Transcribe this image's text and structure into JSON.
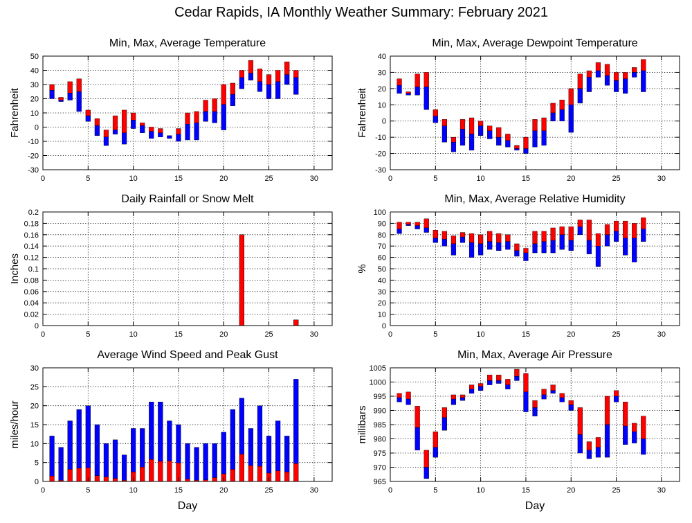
{
  "page": {
    "title": "Cedar Rapids, IA Monthly Weather Summary: February 2021"
  },
  "colors": {
    "upper": "#ff0000",
    "lower": "#0000ff",
    "frame": "#000000",
    "grid": "#000000"
  },
  "chart_data": [
    {
      "id": "temperature",
      "type": "bar",
      "title": "Min, Max, Average Temperature",
      "xlabel": "",
      "ylabel": "Fahrenheit",
      "xlim": [
        0,
        32
      ],
      "xticks": [
        0,
        5,
        10,
        15,
        20,
        25,
        30
      ],
      "ylim": [
        -30,
        50
      ],
      "yticks": [
        -30,
        -20,
        -10,
        0,
        10,
        20,
        30,
        40,
        50
      ],
      "grid": true,
      "mode": "range",
      "days": [
        1,
        2,
        3,
        4,
        5,
        6,
        7,
        8,
        9,
        10,
        11,
        12,
        13,
        14,
        15,
        16,
        17,
        18,
        19,
        20,
        21,
        22,
        23,
        24,
        25,
        26,
        27,
        28
      ],
      "min": [
        20,
        18,
        19,
        11,
        4,
        -6,
        -13,
        -5,
        -12,
        -1,
        -4,
        -8,
        -7,
        -8,
        -10,
        -9,
        -9,
        4,
        3,
        -2,
        15,
        27,
        33,
        25,
        20,
        20,
        30,
        23
      ],
      "avg": [
        26,
        19,
        24,
        25,
        8,
        1,
        -7,
        -2,
        -4,
        5,
        1,
        -3,
        -4,
        -6,
        -5,
        2,
        3,
        11,
        11,
        16,
        23,
        35,
        38,
        32,
        30,
        32,
        37,
        35
      ],
      "max": [
        30,
        21,
        32,
        34,
        12,
        6,
        -2,
        8,
        12,
        10,
        3,
        0,
        -1,
        -6,
        -1,
        10,
        11,
        19,
        20,
        30,
        31,
        40,
        47,
        41,
        37,
        40,
        46,
        40
      ]
    },
    {
      "id": "dewpoint",
      "type": "bar",
      "title": "Min, Max, Average Dewpoint Temperature",
      "xlabel": "",
      "ylabel": "Fahrenheit",
      "xlim": [
        0,
        32
      ],
      "xticks": [
        0,
        5,
        10,
        15,
        20,
        25,
        30
      ],
      "ylim": [
        -30,
        40
      ],
      "yticks": [
        -30,
        -20,
        -10,
        0,
        10,
        20,
        30,
        40
      ],
      "grid": true,
      "mode": "range",
      "days": [
        1,
        2,
        3,
        4,
        5,
        6,
        7,
        8,
        9,
        10,
        11,
        12,
        13,
        14,
        15,
        16,
        17,
        18,
        19,
        20,
        21,
        22,
        23,
        24,
        25,
        26,
        27,
        28
      ],
      "min": [
        17,
        16,
        16,
        7,
        -1,
        -13,
        -19,
        -15,
        -18,
        -9,
        -11,
        -15,
        -16,
        -18,
        -20,
        -16,
        -15,
        0,
        0,
        -7,
        11,
        18,
        27,
        22,
        18,
        17,
        27,
        18
      ],
      "avg": [
        22,
        17,
        21,
        21,
        3,
        -3,
        -13,
        -5,
        -8,
        -3,
        -6,
        -10,
        -12,
        -17,
        -17,
        -6,
        -6,
        5,
        7,
        10,
        20,
        27,
        31,
        28,
        25,
        26,
        30,
        31
      ],
      "max": [
        26,
        18,
        29,
        30,
        7,
        1,
        -10,
        1,
        2,
        0,
        -3,
        -4,
        -8,
        -15,
        -10,
        1,
        2,
        11,
        13,
        20,
        29,
        31,
        36,
        35,
        30,
        30,
        33,
        38
      ]
    },
    {
      "id": "rainfall",
      "type": "bar",
      "title": "Daily Rainfall or Snow Melt",
      "xlabel": "",
      "ylabel": "Inches",
      "xlim": [
        0,
        32
      ],
      "xticks": [
        0,
        5,
        10,
        15,
        20,
        25,
        30
      ],
      "ylim": [
        0,
        0.2
      ],
      "yticks": [
        0,
        0.02,
        0.04,
        0.06,
        0.08,
        0.1,
        0.12,
        0.14,
        0.16,
        0.18,
        0.2
      ],
      "grid": true,
      "mode": "single",
      "days": [
        1,
        2,
        3,
        4,
        5,
        6,
        7,
        8,
        9,
        10,
        11,
        12,
        13,
        14,
        15,
        16,
        17,
        18,
        19,
        20,
        21,
        22,
        23,
        24,
        25,
        26,
        27,
        28
      ],
      "value": [
        0,
        0,
        0,
        0,
        0,
        0,
        0,
        0,
        0,
        0,
        0,
        0,
        0,
        0,
        0,
        0,
        0,
        0,
        0,
        0,
        0,
        0.16,
        0,
        0,
        0,
        0,
        0,
        0.01
      ]
    },
    {
      "id": "humidity",
      "type": "bar",
      "title": "Min, Max, Average Relative Humidity",
      "xlabel": "",
      "ylabel": "%",
      "xlim": [
        0,
        32
      ],
      "xticks": [
        0,
        5,
        10,
        15,
        20,
        25,
        30
      ],
      "ylim": [
        0,
        100
      ],
      "yticks": [
        0,
        10,
        20,
        30,
        40,
        50,
        60,
        70,
        80,
        90,
        100
      ],
      "grid": true,
      "mode": "range",
      "days": [
        1,
        2,
        3,
        4,
        5,
        6,
        7,
        8,
        9,
        10,
        11,
        12,
        13,
        14,
        15,
        16,
        17,
        18,
        19,
        20,
        21,
        22,
        23,
        24,
        25,
        26,
        27,
        28
      ],
      "min": [
        81,
        88,
        85,
        82,
        73,
        70,
        62,
        73,
        60,
        62,
        67,
        66,
        67,
        61,
        57,
        64,
        64,
        64,
        67,
        66,
        80,
        63,
        52,
        70,
        74,
        62,
        56,
        74
      ],
      "avg": [
        85,
        89,
        88,
        86,
        77,
        76,
        72,
        78,
        73,
        72,
        74,
        73,
        74,
        66,
        64,
        72,
        74,
        75,
        80,
        75,
        87,
        75,
        70,
        80,
        83,
        77,
        77,
        85
      ],
      "max": [
        91,
        91,
        91,
        94,
        84,
        83,
        79,
        82,
        81,
        80,
        83,
        81,
        80,
        72,
        68,
        83,
        83,
        86,
        87,
        87,
        93,
        93,
        81,
        89,
        92,
        92,
        90,
        95
      ]
    },
    {
      "id": "wind",
      "type": "bar",
      "title": "Average Wind Speed and Peak Gust",
      "xlabel": "Day",
      "ylabel": "miles/hour",
      "xlim": [
        0,
        32
      ],
      "xticks": [
        0,
        5,
        10,
        15,
        20,
        25,
        30
      ],
      "ylim": [
        0,
        30
      ],
      "yticks": [
        0,
        5,
        10,
        15,
        20,
        25,
        30
      ],
      "grid": true,
      "mode": "stack",
      "days": [
        1,
        2,
        3,
        4,
        5,
        6,
        7,
        8,
        9,
        10,
        11,
        12,
        13,
        14,
        15,
        16,
        17,
        18,
        19,
        20,
        21,
        22,
        23,
        24,
        25,
        26,
        27,
        28
      ],
      "avg": [
        1.4,
        0.3,
        3.2,
        3.5,
        3.6,
        1.5,
        1.2,
        0.8,
        0.3,
        2.5,
        3.8,
        5.8,
        5.3,
        5.4,
        4.9,
        0.6,
        0.3,
        0.4,
        1.0,
        2.0,
        3.2,
        7.2,
        4.2,
        4.0,
        2.2,
        2.8,
        2.5,
        4.7
      ],
      "gust": [
        12,
        9,
        16,
        19,
        20,
        15,
        10,
        11,
        7,
        14,
        14,
        21,
        21,
        16,
        15,
        10,
        9,
        10,
        10,
        13,
        19,
        22,
        14,
        20,
        12,
        16,
        12,
        27
      ]
    },
    {
      "id": "pressure",
      "type": "bar",
      "title": "Min, Max, Average Air Pressure",
      "xlabel": "Day",
      "ylabel": "millibars",
      "xlim": [
        0,
        32
      ],
      "xticks": [
        0,
        5,
        10,
        15,
        20,
        25,
        30
      ],
      "ylim": [
        965,
        1005
      ],
      "yticks": [
        965,
        970,
        975,
        980,
        985,
        990,
        995,
        1000,
        1005
      ],
      "grid": true,
      "mode": "range",
      "days": [
        1,
        2,
        3,
        4,
        5,
        6,
        7,
        8,
        9,
        10,
        11,
        12,
        13,
        14,
        15,
        16,
        17,
        18,
        19,
        20,
        21,
        22,
        23,
        24,
        25,
        26,
        27,
        28
      ],
      "min": [
        993,
        992,
        976,
        966,
        973.5,
        983,
        992,
        993.5,
        996,
        997,
        999,
        999.5,
        997.5,
        1000.5,
        989.5,
        988,
        994,
        996,
        993,
        990,
        975,
        973,
        973.5,
        973.5,
        993,
        978,
        978.5,
        974.5
      ],
      "avg": [
        994.5,
        994,
        984,
        970,
        977,
        987.5,
        994,
        994.5,
        997.5,
        998.5,
        1000.5,
        1000.5,
        999,
        1002,
        996.5,
        991,
        995.5,
        997,
        994.5,
        992,
        981.5,
        976,
        977,
        985,
        995,
        984.5,
        982.5,
        980
      ],
      "max": [
        996,
        996.5,
        991.5,
        976,
        982.5,
        991,
        995.5,
        995.5,
        999,
        999.5,
        1002.5,
        1002.5,
        1001,
        1004.5,
        1003,
        993.5,
        997.5,
        999,
        996,
        993.5,
        991,
        979,
        980.5,
        995,
        997,
        993,
        985.5,
        988
      ]
    }
  ]
}
